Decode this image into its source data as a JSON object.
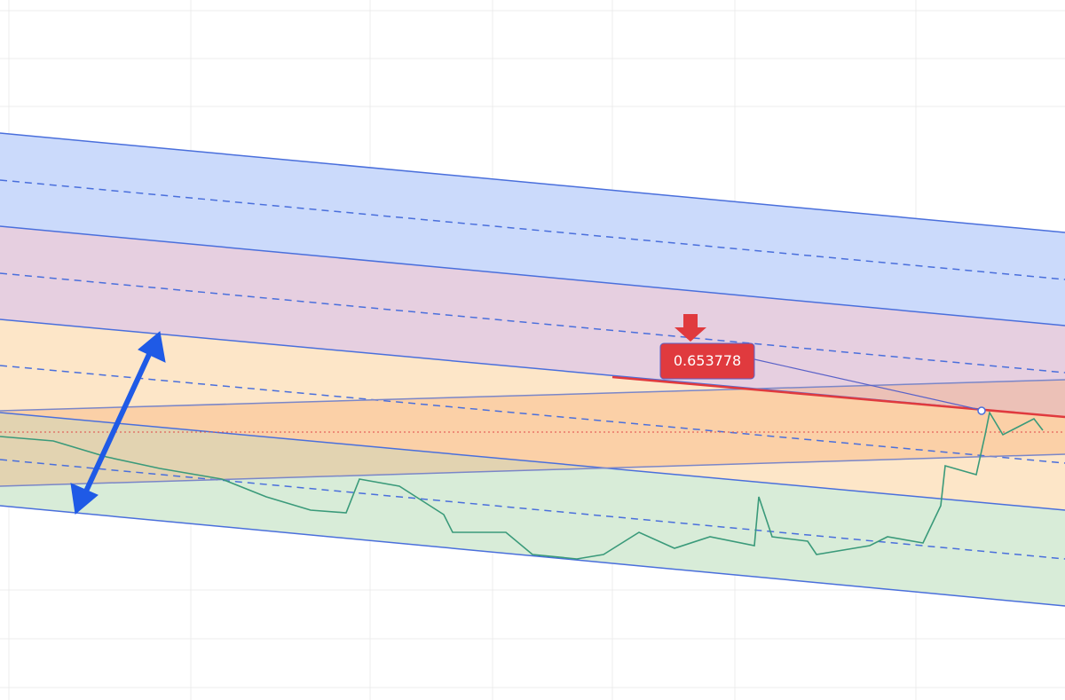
{
  "label": {
    "price": "0.653778"
  }
}
